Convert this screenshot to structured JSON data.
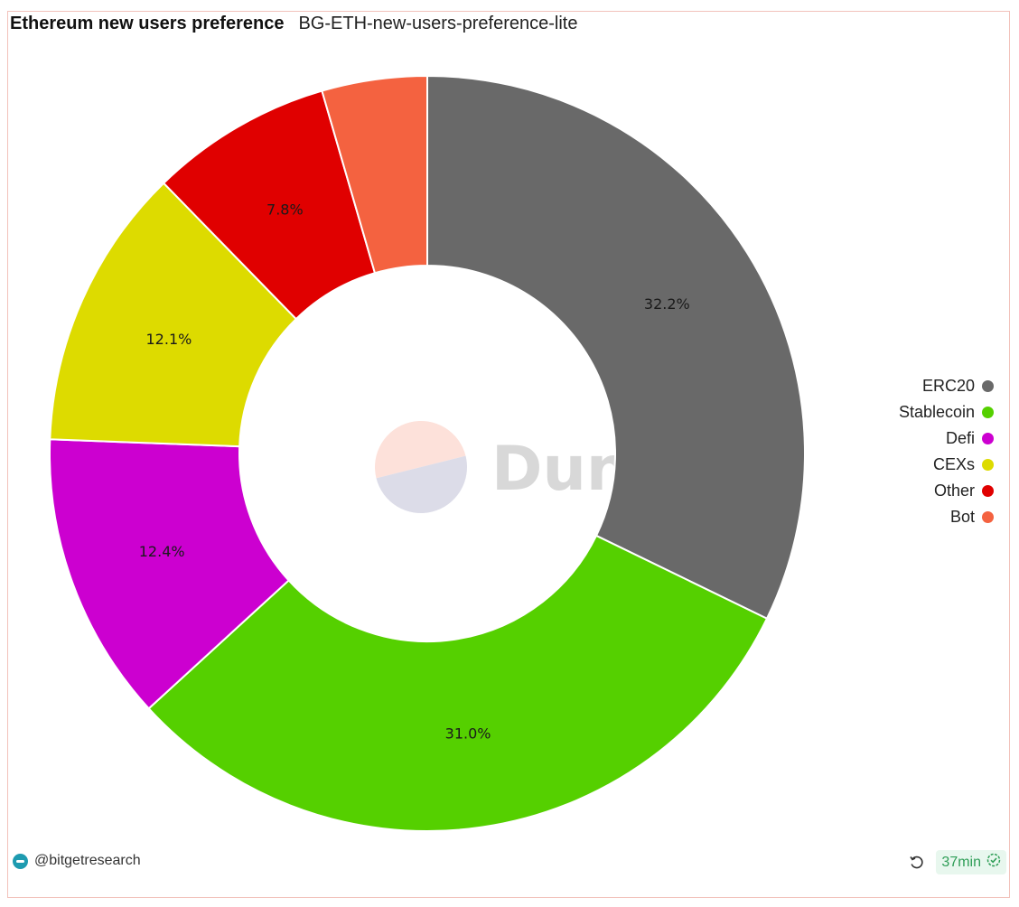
{
  "header": {
    "title": "Ethereum new users preference",
    "subtitle": "BG-ETH-new-users-preference-lite"
  },
  "watermark": {
    "text": "Dune"
  },
  "chart_data": {
    "type": "pie",
    "donut": true,
    "legend_position": "right",
    "labels": [
      "ERC20",
      "Stablecoin",
      "Defi",
      "CEXs",
      "Other",
      "Bot"
    ],
    "values": [
      32.2,
      31.0,
      12.4,
      12.1,
      7.8,
      4.5
    ],
    "data_labels": [
      "32.2%",
      "31.0%",
      "12.4%",
      "12.1%",
      "7.8%",
      ""
    ],
    "colors": [
      "#696969",
      "#55d000",
      "#cc00d0",
      "#dddb00",
      "#e00000",
      "#f46240"
    ]
  },
  "footer": {
    "author": "@bitgetresearch",
    "refresh_age": "37min",
    "icons": {
      "refresh": "refresh-icon",
      "status": "check-circle-icon",
      "avatar": "avatar"
    }
  }
}
